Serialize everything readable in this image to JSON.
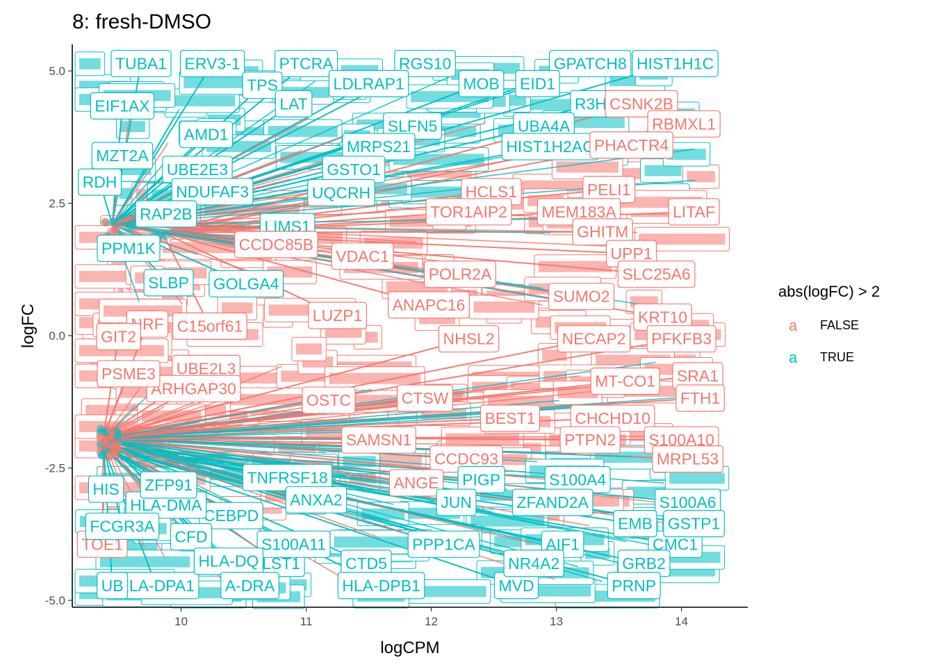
{
  "colors": {
    "false": "#F8766D",
    "true": "#00BFC4"
  },
  "chart_data": {
    "type": "scatter",
    "title": "8: fresh-DMSO",
    "xlabel": "logCPM",
    "ylabel": "logFC",
    "xlim": [
      9.13,
      14.53
    ],
    "ylim": [
      -5.13,
      5.5
    ],
    "xticks": [
      10,
      11,
      12,
      13,
      14
    ],
    "yticks": [
      -5.0,
      -2.5,
      0.0,
      2.5,
      5.0
    ],
    "ytick_labels": [
      "-5.0",
      "-2.5",
      "0.0",
      "2.5",
      "5.0"
    ],
    "legend": {
      "title": "abs(logFC) > 2",
      "key_glyph": "a",
      "entries": [
        "FALSE",
        "TRUE"
      ],
      "position": "right"
    },
    "labels": [
      {
        "gene": "HIST1H1C",
        "x": 13.95,
        "y": 5.14,
        "sig": true,
        "px": 9.45,
        "py": 2.1
      },
      {
        "gene": "GPATCH8",
        "x": 13.27,
        "y": 5.14,
        "sig": true,
        "px": 9.45,
        "py": 2.1
      },
      {
        "gene": "RGS10",
        "x": 11.95,
        "y": 5.14,
        "sig": true,
        "px": 9.45,
        "py": 2.1
      },
      {
        "gene": "PTCRA",
        "x": 11.0,
        "y": 5.14,
        "sig": true,
        "px": 9.45,
        "py": 2.1
      },
      {
        "gene": "ERV3-1",
        "x": 10.25,
        "y": 5.14,
        "sig": true,
        "px": 9.45,
        "py": 2.1
      },
      {
        "gene": "TUBA1",
        "x": 9.68,
        "y": 5.14,
        "sig": true,
        "px": 9.45,
        "py": 2.1
      },
      {
        "gene": "LDLRAP1",
        "x": 11.5,
        "y": 4.76,
        "sig": true,
        "px": 9.45,
        "py": 2.1
      },
      {
        "gene": "MOB",
        "x": 12.4,
        "y": 4.76,
        "sig": true,
        "px": 9.45,
        "py": 2.1
      },
      {
        "gene": "EID1",
        "x": 12.85,
        "y": 4.76,
        "sig": true,
        "px": 9.45,
        "py": 2.1
      },
      {
        "gene": "TPS",
        "x": 10.65,
        "y": 4.73,
        "sig": true,
        "px": 9.45,
        "py": 2.1
      },
      {
        "gene": "LAT",
        "x": 10.9,
        "y": 4.38,
        "sig": true,
        "px": 9.45,
        "py": 2.1
      },
      {
        "gene": "R3HD",
        "x": 13.32,
        "y": 4.38,
        "sig": true,
        "px": 9.45,
        "py": 2.1
      },
      {
        "gene": "EIF1AX",
        "x": 9.53,
        "y": 4.34,
        "sig": true,
        "px": 9.45,
        "py": 2.1
      },
      {
        "gene": "SLFN5",
        "x": 11.85,
        "y": 3.96,
        "sig": true,
        "px": 9.45,
        "py": 2.1
      },
      {
        "gene": "UBA4A",
        "x": 12.9,
        "y": 3.96,
        "sig": true,
        "px": 9.45,
        "py": 2.1
      },
      {
        "gene": "AMD1",
        "x": 10.2,
        "y": 3.8,
        "sig": true,
        "px": 9.45,
        "py": 2.1
      },
      {
        "gene": "MRPS21",
        "x": 11.58,
        "y": 3.57,
        "sig": true,
        "px": 9.45,
        "py": 2.1
      },
      {
        "gene": "HIST1H2AC",
        "x": 12.95,
        "y": 3.57,
        "sig": true,
        "px": 9.45,
        "py": 2.1
      },
      {
        "gene": "MZT2A",
        "x": 9.53,
        "y": 3.4,
        "sig": true,
        "px": 9.45,
        "py": 2.1
      },
      {
        "gene": "UBE2E3",
        "x": 10.13,
        "y": 3.14,
        "sig": true,
        "px": 9.45,
        "py": 2.1
      },
      {
        "gene": "GSTO1",
        "x": 11.38,
        "y": 3.14,
        "sig": true,
        "px": 9.45,
        "py": 2.1
      },
      {
        "gene": "UQCRH",
        "x": 11.28,
        "y": 2.7,
        "sig": true,
        "px": 9.45,
        "py": 2.1
      },
      {
        "gene": "NDUFAF3",
        "x": 10.25,
        "y": 2.72,
        "sig": true,
        "px": 9.45,
        "py": 2.1
      },
      {
        "gene": "RDH",
        "x": 9.35,
        "y": 2.9,
        "sig": true,
        "px": 9.45,
        "py": 2.1
      },
      {
        "gene": "RAP2B",
        "x": 9.88,
        "y": 2.3,
        "sig": true,
        "px": 9.45,
        "py": 2.1
      },
      {
        "gene": "LIMS1",
        "x": 10.85,
        "y": 2.06,
        "sig": true,
        "px": 9.45,
        "py": 2.1
      },
      {
        "gene": "PPM1K",
        "x": 9.58,
        "y": 1.65,
        "sig": true,
        "px": 9.45,
        "py": 2.1
      },
      {
        "gene": "SLBP",
        "x": 9.9,
        "y": 1.0,
        "sig": true,
        "px": 9.45,
        "py": 2.1
      },
      {
        "gene": "GOLGA4",
        "x": 10.52,
        "y": 0.98,
        "sig": true,
        "px": 9.45,
        "py": 2.1
      },
      {
        "gene": "CSNK2B",
        "x": 13.68,
        "y": 4.38,
        "sig": false,
        "px": 9.85,
        "py": 1.95
      },
      {
        "gene": "RBMXL1",
        "x": 14.02,
        "y": 4.0,
        "sig": false,
        "px": 9.85,
        "py": 1.95
      },
      {
        "gene": "PHACTR4",
        "x": 13.6,
        "y": 3.6,
        "sig": false,
        "px": 9.85,
        "py": 1.95
      },
      {
        "gene": "HCLS1",
        "x": 12.48,
        "y": 2.72,
        "sig": false,
        "px": 9.85,
        "py": 1.95
      },
      {
        "gene": "PELI1",
        "x": 13.42,
        "y": 2.76,
        "sig": false,
        "px": 9.85,
        "py": 1.95
      },
      {
        "gene": "LITAF",
        "x": 14.1,
        "y": 2.34,
        "sig": false,
        "px": 9.85,
        "py": 1.95
      },
      {
        "gene": "TOR1AIP2",
        "x": 12.3,
        "y": 2.34,
        "sig": false,
        "px": 9.85,
        "py": 1.95
      },
      {
        "gene": "MEM183A",
        "x": 13.18,
        "y": 2.34,
        "sig": false,
        "px": 9.85,
        "py": 1.95
      },
      {
        "gene": "GHITM",
        "x": 13.37,
        "y": 1.96,
        "sig": false,
        "px": 9.85,
        "py": 1.95
      },
      {
        "gene": "CCDC85B",
        "x": 10.76,
        "y": 1.72,
        "sig": false,
        "px": 9.85,
        "py": 1.95
      },
      {
        "gene": "VDAC1",
        "x": 11.45,
        "y": 1.5,
        "sig": false,
        "px": 9.85,
        "py": 1.95
      },
      {
        "gene": "UPP1",
        "x": 13.6,
        "y": 1.55,
        "sig": false,
        "px": 9.85,
        "py": 1.95
      },
      {
        "gene": "POLR2A",
        "x": 12.23,
        "y": 1.16,
        "sig": false,
        "px": 9.85,
        "py": 1.95
      },
      {
        "gene": "SLC25A6",
        "x": 13.8,
        "y": 1.16,
        "sig": false,
        "px": 9.85,
        "py": 1.95
      },
      {
        "gene": "SUMO2",
        "x": 13.2,
        "y": 0.74,
        "sig": false,
        "px": 9.85,
        "py": 1.95
      },
      {
        "gene": "ANAPC16",
        "x": 11.98,
        "y": 0.58,
        "sig": false,
        "px": 9.85,
        "py": 1.95
      },
      {
        "gene": "KRT10",
        "x": 13.85,
        "y": 0.35,
        "sig": false,
        "px": 9.85,
        "py": 1.95
      },
      {
        "gene": "C15orf61",
        "x": 10.23,
        "y": 0.18,
        "sig": false,
        "px": 9.85,
        "py": 1.95
      },
      {
        "gene": "LUZP1",
        "x": 11.25,
        "y": 0.38,
        "sig": false,
        "px": 9.85,
        "py": 1.95
      },
      {
        "gene": "NHSL2",
        "x": 12.3,
        "y": -0.06,
        "sig": false,
        "px": 9.38,
        "py": -1.9
      },
      {
        "gene": "PFKFB3",
        "x": 14.0,
        "y": -0.06,
        "sig": false,
        "px": 9.38,
        "py": -1.9
      },
      {
        "gene": "NECAP2",
        "x": 13.3,
        "y": -0.06,
        "sig": false,
        "px": 9.38,
        "py": -1.9
      },
      {
        "gene": "UBE2L3",
        "x": 10.2,
        "y": -0.62,
        "sig": false,
        "px": 9.38,
        "py": -1.9
      },
      {
        "gene": "ARHGAP30",
        "x": 10.1,
        "y": -1.0,
        "sig": false,
        "px": 9.38,
        "py": -1.9
      },
      {
        "gene": "MT-CO1",
        "x": 13.55,
        "y": -0.86,
        "sig": false,
        "px": 9.38,
        "py": -1.9
      },
      {
        "gene": "SRA1",
        "x": 14.13,
        "y": -0.76,
        "sig": false,
        "px": 9.38,
        "py": -1.9
      },
      {
        "gene": "OSTC",
        "x": 11.18,
        "y": -1.22,
        "sig": false,
        "px": 9.38,
        "py": -1.9
      },
      {
        "gene": "CTSW",
        "x": 11.95,
        "y": -1.18,
        "sig": false,
        "px": 9.38,
        "py": -1.9
      },
      {
        "gene": "FTH1",
        "x": 14.15,
        "y": -1.18,
        "sig": false,
        "px": 9.38,
        "py": -1.9
      },
      {
        "gene": "BEST1",
        "x": 12.63,
        "y": -1.56,
        "sig": false,
        "px": 9.38,
        "py": -1.9
      },
      {
        "gene": "CHCHD10",
        "x": 13.45,
        "y": -1.56,
        "sig": false,
        "px": 9.38,
        "py": -1.9
      },
      {
        "gene": "SAMSN1",
        "x": 11.58,
        "y": -1.97,
        "sig": false,
        "px": 9.38,
        "py": -1.9
      },
      {
        "gene": "PTPN2",
        "x": 13.27,
        "y": -1.97,
        "sig": false,
        "px": 9.38,
        "py": -1.9
      },
      {
        "gene": "S100A10",
        "x": 14.0,
        "y": -1.97,
        "sig": false,
        "px": 9.38,
        "py": -1.9
      },
      {
        "gene": "MRPL53",
        "x": 14.05,
        "y": -2.33,
        "sig": false,
        "px": 9.38,
        "py": -1.9
      },
      {
        "gene": "CCDC93",
        "x": 12.28,
        "y": -2.33,
        "sig": false,
        "px": 9.38,
        "py": -1.9
      },
      {
        "gene": "ANGE",
        "x": 11.88,
        "y": -2.78,
        "sig": false,
        "px": 9.38,
        "py": -1.9
      },
      {
        "gene": "PSME3",
        "x": 9.58,
        "y": -0.72,
        "sig": false,
        "px": 9.38,
        "py": -1.9
      },
      {
        "gene": "NRF",
        "x": 9.73,
        "y": 0.22,
        "sig": false,
        "px": 9.38,
        "py": -1.9
      },
      {
        "gene": "GIT2",
        "x": 9.5,
        "y": -0.02,
        "sig": false,
        "px": 9.38,
        "py": -1.9
      },
      {
        "gene": "TOE1",
        "x": 9.37,
        "y": -3.94,
        "sig": false,
        "px": 9.38,
        "py": -1.9
      },
      {
        "gene": "S100A4",
        "x": 13.17,
        "y": -2.72,
        "sig": true,
        "px": 9.38,
        "py": -2.1
      },
      {
        "gene": "S100A6",
        "x": 14.05,
        "y": -3.15,
        "sig": true,
        "px": 9.38,
        "py": -2.1
      },
      {
        "gene": "ZFAND2A",
        "x": 12.97,
        "y": -3.15,
        "sig": true,
        "px": 9.38,
        "py": -2.1
      },
      {
        "gene": "PIGP",
        "x": 12.4,
        "y": -2.72,
        "sig": true,
        "px": 9.38,
        "py": -2.1
      },
      {
        "gene": "TNFRSF18",
        "x": 10.85,
        "y": -2.68,
        "sig": true,
        "px": 9.38,
        "py": -2.1
      },
      {
        "gene": "ANXA2",
        "x": 11.08,
        "y": -3.1,
        "sig": true,
        "px": 9.38,
        "py": -2.1
      },
      {
        "gene": "JUN",
        "x": 12.2,
        "y": -3.15,
        "sig": true,
        "px": 9.38,
        "py": -2.1
      },
      {
        "gene": "CEBPD",
        "x": 10.4,
        "y": -3.4,
        "sig": true,
        "px": 9.38,
        "py": -2.1
      },
      {
        "gene": "HLA-DMA",
        "x": 9.88,
        "y": -3.2,
        "sig": true,
        "px": 9.38,
        "py": -2.1
      },
      {
        "gene": "ZFP91",
        "x": 9.9,
        "y": -2.82,
        "sig": true,
        "px": 9.38,
        "py": -2.1
      },
      {
        "gene": "FCGR3A",
        "x": 9.53,
        "y": -3.6,
        "sig": true,
        "px": 9.38,
        "py": -2.1
      },
      {
        "gene": "CFD",
        "x": 10.08,
        "y": -3.8,
        "sig": true,
        "px": 9.38,
        "py": -2.1
      },
      {
        "gene": "PPP1CA",
        "x": 12.1,
        "y": -3.94,
        "sig": true,
        "px": 9.38,
        "py": -2.1
      },
      {
        "gene": "AIF1",
        "x": 13.05,
        "y": -3.94,
        "sig": true,
        "px": 9.38,
        "py": -2.1
      },
      {
        "gene": "CMC1",
        "x": 13.95,
        "y": -3.94,
        "sig": true,
        "px": 9.38,
        "py": -2.1
      },
      {
        "gene": "EMB",
        "x": 13.63,
        "y": -3.55,
        "sig": true,
        "px": 9.38,
        "py": -2.1
      },
      {
        "gene": "GSTP1",
        "x": 14.1,
        "y": -3.55,
        "sig": true,
        "px": 9.38,
        "py": -2.1
      },
      {
        "gene": "GRB2",
        "x": 13.7,
        "y": -4.3,
        "sig": true,
        "px": 9.38,
        "py": -2.1
      },
      {
        "gene": "LST1",
        "x": 10.8,
        "y": -4.3,
        "sig": true,
        "px": 9.38,
        "py": -2.1
      },
      {
        "gene": "CTD5",
        "x": 11.48,
        "y": -4.3,
        "sig": true,
        "px": 9.38,
        "py": -2.1
      },
      {
        "gene": "S100A11",
        "x": 10.9,
        "y": -3.94,
        "sig": true,
        "px": 9.38,
        "py": -2.1
      },
      {
        "gene": "HLA-DPA1",
        "x": 9.8,
        "y": -4.72,
        "sig": true,
        "px": 9.38,
        "py": -2.1
      },
      {
        "gene": "HLA-DPB1",
        "x": 11.6,
        "y": -4.72,
        "sig": true,
        "px": 9.38,
        "py": -2.1
      },
      {
        "gene": "MVD",
        "x": 12.68,
        "y": -4.72,
        "sig": true,
        "px": 9.38,
        "py": -2.1
      },
      {
        "gene": "PRNP",
        "x": 13.62,
        "y": -4.72,
        "sig": true,
        "px": 9.38,
        "py": -2.1
      },
      {
        "gene": "HIS",
        "x": 9.4,
        "y": -2.9,
        "sig": true,
        "px": 9.38,
        "py": -2.1
      },
      {
        "gene": "NR4A2",
        "x": 12.82,
        "y": -4.3,
        "sig": true,
        "px": 9.38,
        "py": -2.1
      },
      {
        "gene": "HLA-DQ",
        "x": 10.38,
        "y": -4.26,
        "sig": true,
        "px": 9.38,
        "py": -2.1
      },
      {
        "gene": "A-DRA",
        "x": 10.55,
        "y": -4.72,
        "sig": true,
        "px": 9.38,
        "py": -2.1
      },
      {
        "gene": "UB",
        "x": 9.45,
        "y": -4.72,
        "sig": true,
        "px": 9.38,
        "py": -2.1
      }
    ]
  }
}
